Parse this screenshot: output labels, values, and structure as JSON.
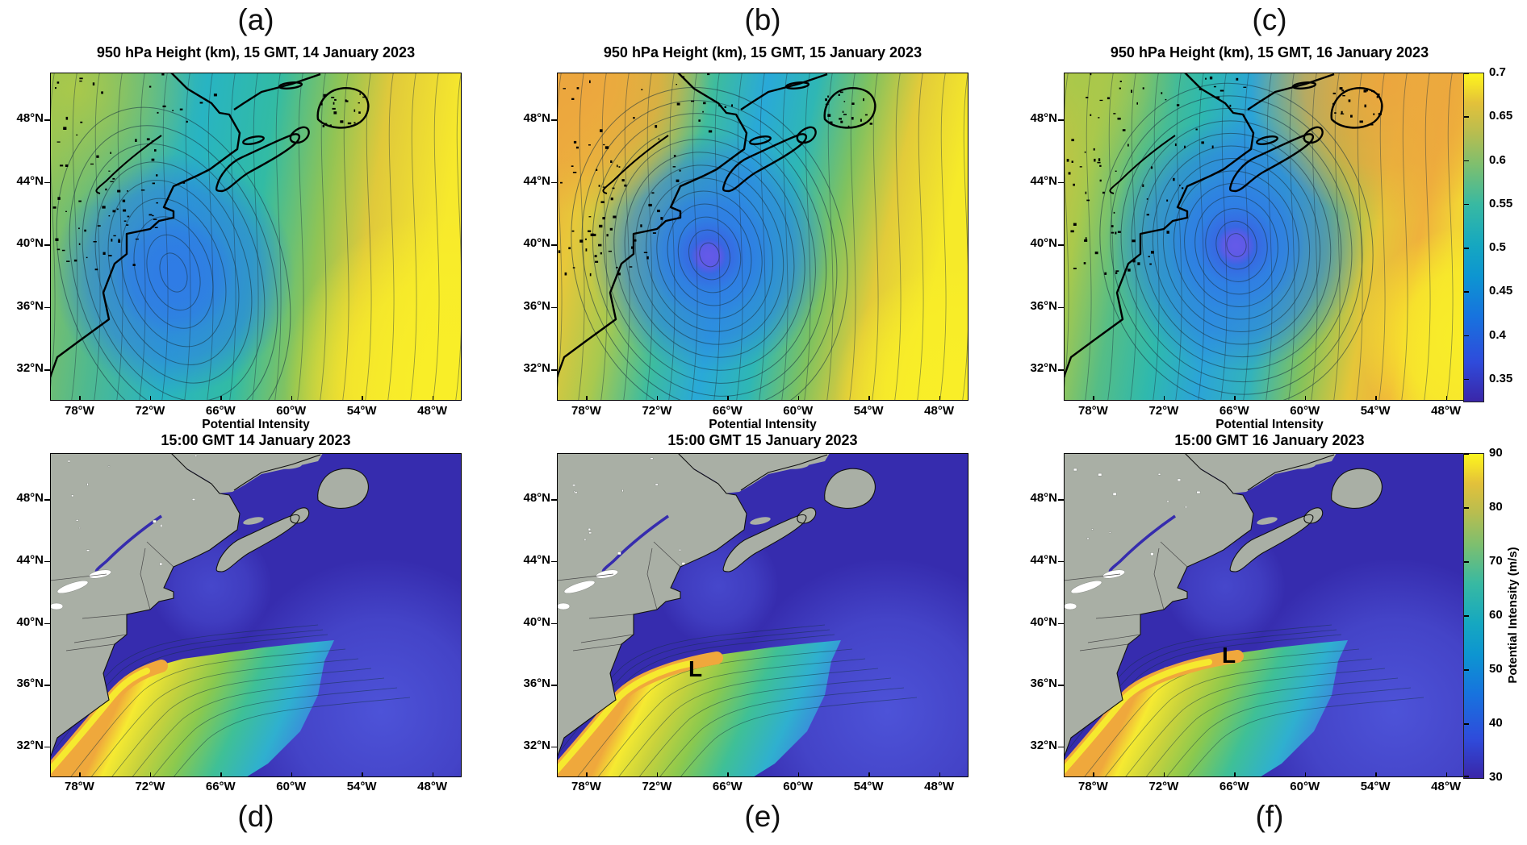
{
  "figure": {
    "panels_top": [
      {
        "label": "(a)",
        "title": "950 hPa Height (km), 15 GMT, 14 January 2023"
      },
      {
        "label": "(b)",
        "title": "950 hPa Height (km), 15 GMT, 15 January 2023"
      },
      {
        "label": "(c)",
        "title": "950 hPa Height (km), 15 GMT, 16 January 2023"
      }
    ],
    "panels_bottom": [
      {
        "label": "(d)",
        "title_line1": "Potential Intensity",
        "title_line2": "15:00 GMT 14 January 2023",
        "low_marker": ""
      },
      {
        "label": "(e)",
        "title_line1": "Potential Intensity",
        "title_line2": "15:00 GMT 15 January 2023",
        "low_marker": "L"
      },
      {
        "label": "(f)",
        "title_line1": "Potential Intensity",
        "title_line2": "15:00 GMT 16 January 2023",
        "low_marker": "L"
      }
    ],
    "axes": {
      "x_ticks": [
        "78°W",
        "72°W",
        "66°W",
        "60°W",
        "54°W",
        "48°W"
      ],
      "y_ticks": [
        "48°N",
        "44°N",
        "40°N",
        "36°N",
        "32°N"
      ]
    },
    "colorbar_top": {
      "ticks": [
        "0.7",
        "0.65",
        "0.6",
        "0.55",
        "0.5",
        "0.45",
        "0.4",
        "0.35"
      ]
    },
    "colorbar_bottom": {
      "ticks": [
        "90",
        "80",
        "70",
        "60",
        "50",
        "40",
        "30"
      ],
      "label": "Potential Intensity (m/s)"
    }
  },
  "chart_data": [
    {
      "panel": "(a)",
      "type": "heatmap",
      "subtype": "filled_contour_map",
      "title": "950 hPa Height (km), 15 GMT, 14 January 2023",
      "variable": "950 hPa geopotential height",
      "units": "km",
      "x_ticks": [
        "78°W",
        "72°W",
        "66°W",
        "60°W",
        "54°W",
        "48°W"
      ],
      "y_ticks": [
        "48°N",
        "44°N",
        "40°N",
        "36°N",
        "32°N"
      ],
      "lon_range_deg_w": [
        80,
        45.5
      ],
      "lat_range_deg_n": [
        30.5,
        50.5
      ],
      "colorbar_range": [
        0.325,
        0.7
      ],
      "colorbar_ticks": [
        0.7,
        0.65,
        0.6,
        0.55,
        0.5,
        0.45,
        0.4,
        0.35
      ],
      "features": [
        "broad open trough, minimum height about 0.44 km near 73W 36N",
        "maximum about 0.70 km (yellow) in southeast corner",
        "about 0.55-0.60 km (green) over northeast North America",
        "thick black coastline drawn over contour field"
      ]
    },
    {
      "panel": "(b)",
      "type": "heatmap",
      "subtype": "filled_contour_map",
      "title": "950 hPa Height (km), 15 GMT, 15 January 2023",
      "variable": "950 hPa geopotential height",
      "units": "km",
      "x_ticks": [
        "78°W",
        "72°W",
        "66°W",
        "60°W",
        "54°W",
        "48°W"
      ],
      "y_ticks": [
        "48°N",
        "44°N",
        "40°N",
        "36°N",
        "32°N"
      ],
      "lon_range_deg_w": [
        80,
        45.5
      ],
      "lat_range_deg_n": [
        30.5,
        50.5
      ],
      "colorbar_range": [
        0.325,
        0.7
      ],
      "colorbar_ticks": [
        0.7,
        0.65,
        0.6,
        0.55,
        0.5,
        0.45,
        0.4,
        0.35
      ],
      "features": [
        "closed cyclone, central height about 0.34 km near 69.5W 37N (blue-violet core)",
        "maximum about 0.70 km in southeast corner",
        "about 0.62-0.66 km (orange) over upper-left land area"
      ]
    },
    {
      "panel": "(c)",
      "type": "heatmap",
      "subtype": "filled_contour_map",
      "title": "950 hPa Height (km), 15 GMT, 16 January 2023",
      "variable": "950 hPa geopotential height",
      "units": "km",
      "x_ticks": [
        "78°W",
        "72°W",
        "66°W",
        "60°W",
        "54°W",
        "48°W"
      ],
      "y_ticks": [
        "48°N",
        "44°N",
        "40°N",
        "36°N",
        "32°N"
      ],
      "lon_range_deg_w": [
        80,
        45.5
      ],
      "lat_range_deg_n": [
        30.5,
        50.5
      ],
      "colorbar_range": [
        0.325,
        0.7
      ],
      "colorbar_ticks": [
        0.7,
        0.65,
        0.6,
        0.55,
        0.5,
        0.45,
        0.4,
        0.35
      ],
      "features": [
        "deep closed cyclone, central height about 0.33 km near 66.5W 37.5N with tightly packed contours",
        "about 0.60-0.67 km (orange-yellow) to the north and east, including Newfoundland",
        "yellow maximum along right edge"
      ]
    },
    {
      "panel": "(d)",
      "type": "heatmap",
      "subtype": "filled_contour_map",
      "title": "Potential Intensity",
      "subtitle": "15:00 GMT 14 January 2023",
      "variable": "Potential Intensity",
      "units": "m/s",
      "x_ticks": [
        "78°W",
        "72°W",
        "66°W",
        "60°W",
        "54°W",
        "48°W"
      ],
      "y_ticks": [
        "48°N",
        "44°N",
        "40°N",
        "36°N",
        "32°N"
      ],
      "lon_range_deg_w": [
        80,
        45.5
      ],
      "lat_range_deg_n": [
        30.5,
        50.5
      ],
      "colorbar_range": [
        30,
        90
      ],
      "colorbar_ticks": [
        90,
        80,
        70,
        60,
        50,
        40,
        30
      ],
      "features": [
        "high-PI Gulf Stream band 70-90 m/s hugging the coast from about 79W 31N to 63W 39N",
        "yellow-orange core 85-90 m/s closest to the coast south of Cape Hatteras",
        "open-ocean background about 30 m/s (dark blue)",
        "land masked gray with white lake-ice patches"
      ]
    },
    {
      "panel": "(e)",
      "type": "heatmap",
      "subtype": "filled_contour_map",
      "title": "Potential Intensity",
      "subtitle": "15:00 GMT 15 January 2023",
      "variable": "Potential Intensity",
      "units": "m/s",
      "x_ticks": [
        "78°W",
        "72°W",
        "66°W",
        "60°W",
        "54°W",
        "48°W"
      ],
      "y_ticks": [
        "48°N",
        "44°N",
        "40°N",
        "36°N",
        "32°N"
      ],
      "lon_range_deg_w": [
        80,
        45.5
      ],
      "lat_range_deg_n": [
        30.5,
        50.5
      ],
      "colorbar_range": [
        30,
        90
      ],
      "colorbar_ticks": [
        90,
        80,
        70,
        60,
        50,
        40,
        30
      ],
      "annotations": [
        "bold L marker near 66.5W 37.5N indicating surface low"
      ],
      "features": [
        "Gulf Stream band 70-90 m/s, orange core 85-90 m/s near 71W 38N",
        "open-ocean background about 30 m/s",
        "land masked gray with white lake-ice patches"
      ]
    },
    {
      "panel": "(f)",
      "type": "heatmap",
      "subtype": "filled_contour_map",
      "title": "Potential Intensity",
      "subtitle": "15:00 GMT 16 January 2023",
      "variable": "Potential Intensity",
      "units": "m/s",
      "x_ticks": [
        "78°W",
        "72°W",
        "66°W",
        "60°W",
        "54°W",
        "48°W"
      ],
      "y_ticks": [
        "48°N",
        "44°N",
        "40°N",
        "36°N",
        "32°N"
      ],
      "lon_range_deg_w": [
        80,
        45.5
      ],
      "lat_range_deg_n": [
        30.5,
        50.5
      ],
      "colorbar_range": [
        30,
        90
      ],
      "colorbar_ticks": [
        90,
        80,
        70,
        60,
        50,
        40,
        30
      ],
      "annotations": [
        "bold L marker near 64W 38N indicating surface low"
      ],
      "features": [
        "Gulf Stream band 70-90 m/s extending east to about 58W",
        "orange-yellow core 85-90 m/s near 70W 38N",
        "open-ocean background about 30 m/s",
        "land masked gray with white lake-ice patches"
      ]
    }
  ]
}
